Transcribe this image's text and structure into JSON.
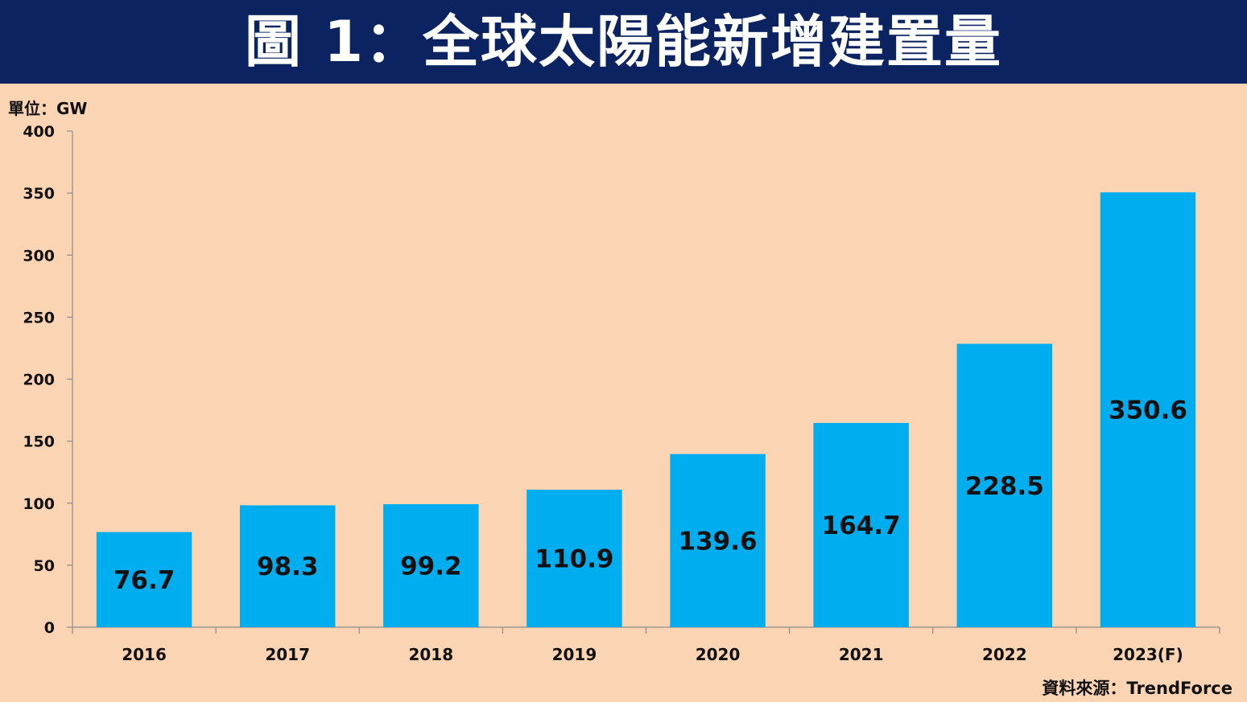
{
  "header": {
    "title": "圖 1：全球太陽能新增建置量"
  },
  "unit_label": "單位：GW",
  "source_label": "資料來源：TrendForce",
  "colors": {
    "header_bg": "#0B2360",
    "background": "#FBD4B3",
    "bar": "#00AEEF"
  },
  "chart_data": {
    "type": "bar",
    "title": "圖 1：全球太陽能新增建置量",
    "xlabel": "",
    "ylabel": "單位：GW",
    "categories": [
      "2016",
      "2017",
      "2018",
      "2019",
      "2020",
      "2021",
      "2022",
      "2023(F)"
    ],
    "values": [
      76.7,
      98.3,
      99.2,
      110.9,
      139.6,
      164.7,
      228.5,
      350.6
    ],
    "data_labels": [
      "76.7",
      "98.3",
      "99.2",
      "110.9",
      "139.6",
      "164.7",
      "228.5",
      "350.6"
    ],
    "ylim": [
      0,
      400
    ],
    "yticks": [
      0,
      50,
      100,
      150,
      200,
      250,
      300,
      350,
      400
    ],
    "grid": false,
    "legend": "none"
  }
}
